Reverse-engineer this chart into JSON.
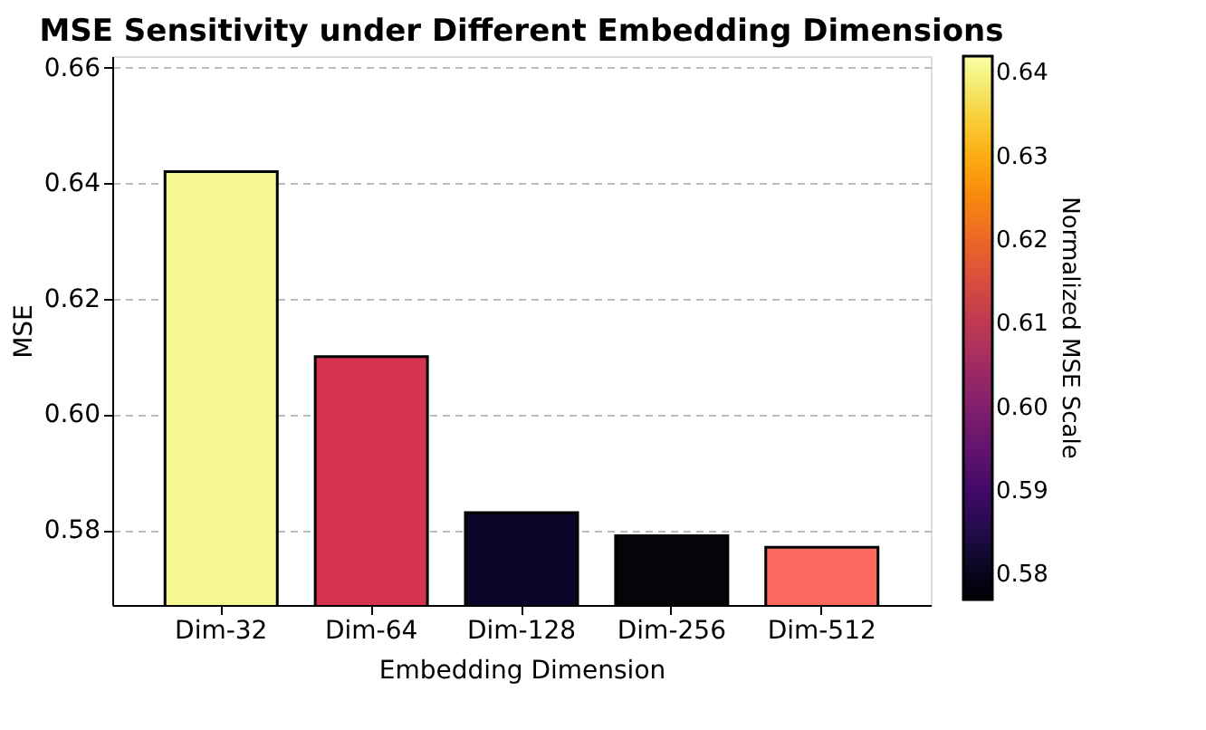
{
  "chart_data": {
    "type": "bar",
    "title": "MSE Sensitivity under Different Embedding Dimensions",
    "xlabel": "Embedding Dimension",
    "ylabel": "MSE",
    "clabel": "Normalized MSE Scale",
    "categories": [
      "Dim-32",
      "Dim-64",
      "Dim-128",
      "Dim-256",
      "Dim-512"
    ],
    "values": [
      0.642,
      0.61,
      0.583,
      0.579,
      0.577
    ],
    "colors": [
      "#f6f993",
      "#d6334e",
      "#0b0628",
      "#050409",
      "#fc6a5f"
    ],
    "ylim": [
      0.567,
      0.662
    ],
    "yticks": [
      0.58,
      {
        "value": 0.6,
        "label": "0.60"
      },
      0.62,
      0.64,
      0.66
    ],
    "clim": [
      0.577,
      0.642
    ],
    "cticks": [
      0.58,
      0.59,
      {
        "value": 0.6,
        "label": "0.60"
      },
      0.61,
      0.62,
      0.63,
      0.64
    ],
    "grid": "y"
  }
}
